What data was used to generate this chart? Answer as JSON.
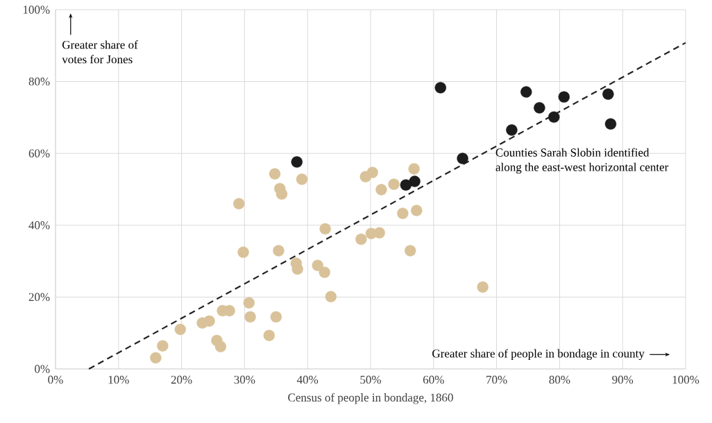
{
  "chart_data": {
    "type": "scatter",
    "xlabel": "Census of people in bondage, 1860",
    "xlim": [
      0,
      100
    ],
    "ylim": [
      0,
      100
    ],
    "xticks": [
      {
        "value": 0,
        "label": "0%"
      },
      {
        "value": 10,
        "label": "10%"
      },
      {
        "value": 20,
        "label": "20%"
      },
      {
        "value": 30,
        "label": "30%"
      },
      {
        "value": 40,
        "label": "40%"
      },
      {
        "value": 50,
        "label": "50%"
      },
      {
        "value": 60,
        "label": "60%"
      },
      {
        "value": 70,
        "label": "70%"
      },
      {
        "value": 80,
        "label": "80%"
      },
      {
        "value": 90,
        "label": "90%"
      },
      {
        "value": 100,
        "label": "100%"
      }
    ],
    "yticks": [
      {
        "value": 0,
        "label": "0%"
      },
      {
        "value": 20,
        "label": "20%"
      },
      {
        "value": 40,
        "label": "40%"
      },
      {
        "value": 60,
        "label": "60%"
      },
      {
        "value": 80,
        "label": "80%"
      },
      {
        "value": 100,
        "label": "100%"
      }
    ],
    "grid": true,
    "series": [
      {
        "color": "#d9c299",
        "x": [
          15.9,
          17.0,
          19.8,
          23.3,
          24.4,
          25.6,
          26.2,
          26.5,
          27.6,
          29.1,
          29.8,
          30.7,
          30.9,
          33.9,
          34.8,
          35.0,
          35.4,
          35.6,
          35.9,
          38.2,
          38.4,
          39.1,
          41.6,
          42.7,
          42.8,
          43.7,
          48.5,
          49.2,
          50.1,
          50.3,
          51.4,
          51.7,
          53.7,
          55.1,
          56.3,
          56.9,
          57.3,
          67.8
        ],
        "values": [
          3.1,
          6.4,
          11.0,
          12.8,
          13.3,
          7.9,
          6.2,
          16.2,
          16.2,
          46.0,
          32.5,
          18.4,
          14.5,
          9.3,
          54.3,
          14.5,
          32.9,
          50.2,
          48.7,
          29.4,
          27.8,
          52.8,
          28.8,
          26.9,
          39.0,
          20.1,
          36.1,
          53.5,
          37.7,
          54.7,
          37.9,
          49.9,
          51.4,
          43.3,
          32.9,
          55.7,
          44.1,
          22.8
        ]
      },
      {
        "color": "#1c1c1c",
        "x": [
          38.3,
          55.6,
          57.0,
          61.1,
          64.6,
          72.4,
          74.7,
          76.8,
          79.1,
          80.7,
          87.7,
          88.1
        ],
        "values": [
          57.6,
          51.2,
          52.2,
          78.3,
          58.6,
          66.5,
          77.1,
          72.7,
          70.1,
          75.7,
          76.5,
          68.2
        ]
      },
      {
        "type": "line",
        "color": "#222222",
        "line_style": "dashed",
        "marker": "none",
        "x": [
          5.3,
          100
        ],
        "values": [
          0,
          90.8
        ]
      }
    ],
    "annotations": [
      "Greater share of votes for Jones",
      "Greater share of people in bondage in county",
      "Counties Sarah Slobin identified along the east-west horizontal center"
    ]
  }
}
